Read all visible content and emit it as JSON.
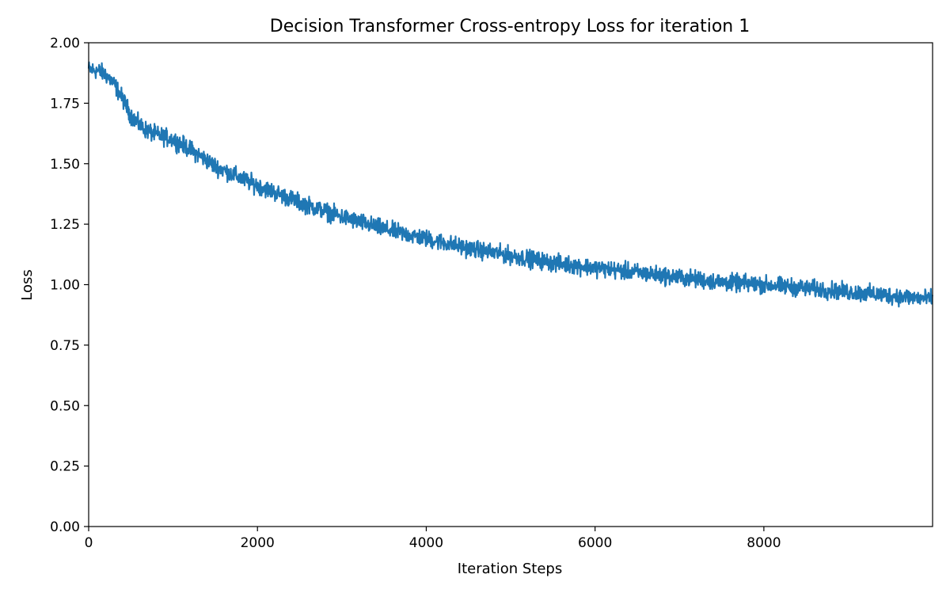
{
  "chart_data": {
    "type": "line",
    "title": "Decision Transformer Cross-entropy Loss for iteration 1",
    "xlabel": "Iteration Steps",
    "ylabel": "Loss",
    "xlim": [
      0,
      9999
    ],
    "ylim": [
      0,
      2.0
    ],
    "x_ticks": [
      0,
      2000,
      4000,
      6000,
      8000
    ],
    "x_tick_labels": [
      "0",
      "2000",
      "4000",
      "6000",
      "8000"
    ],
    "y_ticks": [
      0,
      0.25,
      0.5,
      0.75,
      1.0,
      1.25,
      1.5,
      1.75,
      2.0
    ],
    "y_tick_labels": [
      "0.00",
      "0.25",
      "0.50",
      "0.75",
      "1.00",
      "1.25",
      "1.50",
      "1.75",
      "2.00"
    ],
    "grid": false,
    "noise_amplitude": 0.025,
    "series": [
      {
        "name": "loss",
        "color": "#1f77b4",
        "trend_x": [
          0,
          100,
          200,
          300,
          400,
          500,
          600,
          700,
          800,
          1000,
          1200,
          1500,
          1800,
          2000,
          2500,
          3000,
          3500,
          4000,
          4500,
          5000,
          5500,
          6000,
          6500,
          7000,
          7500,
          8000,
          8500,
          9000,
          9500,
          9999
        ],
        "trend_y": [
          1.89,
          1.885,
          1.87,
          1.83,
          1.77,
          1.7,
          1.66,
          1.635,
          1.62,
          1.6,
          1.56,
          1.49,
          1.44,
          1.41,
          1.34,
          1.28,
          1.23,
          1.19,
          1.15,
          1.12,
          1.09,
          1.07,
          1.05,
          1.03,
          1.01,
          1.0,
          0.985,
          0.97,
          0.955,
          0.94
        ]
      }
    ]
  }
}
